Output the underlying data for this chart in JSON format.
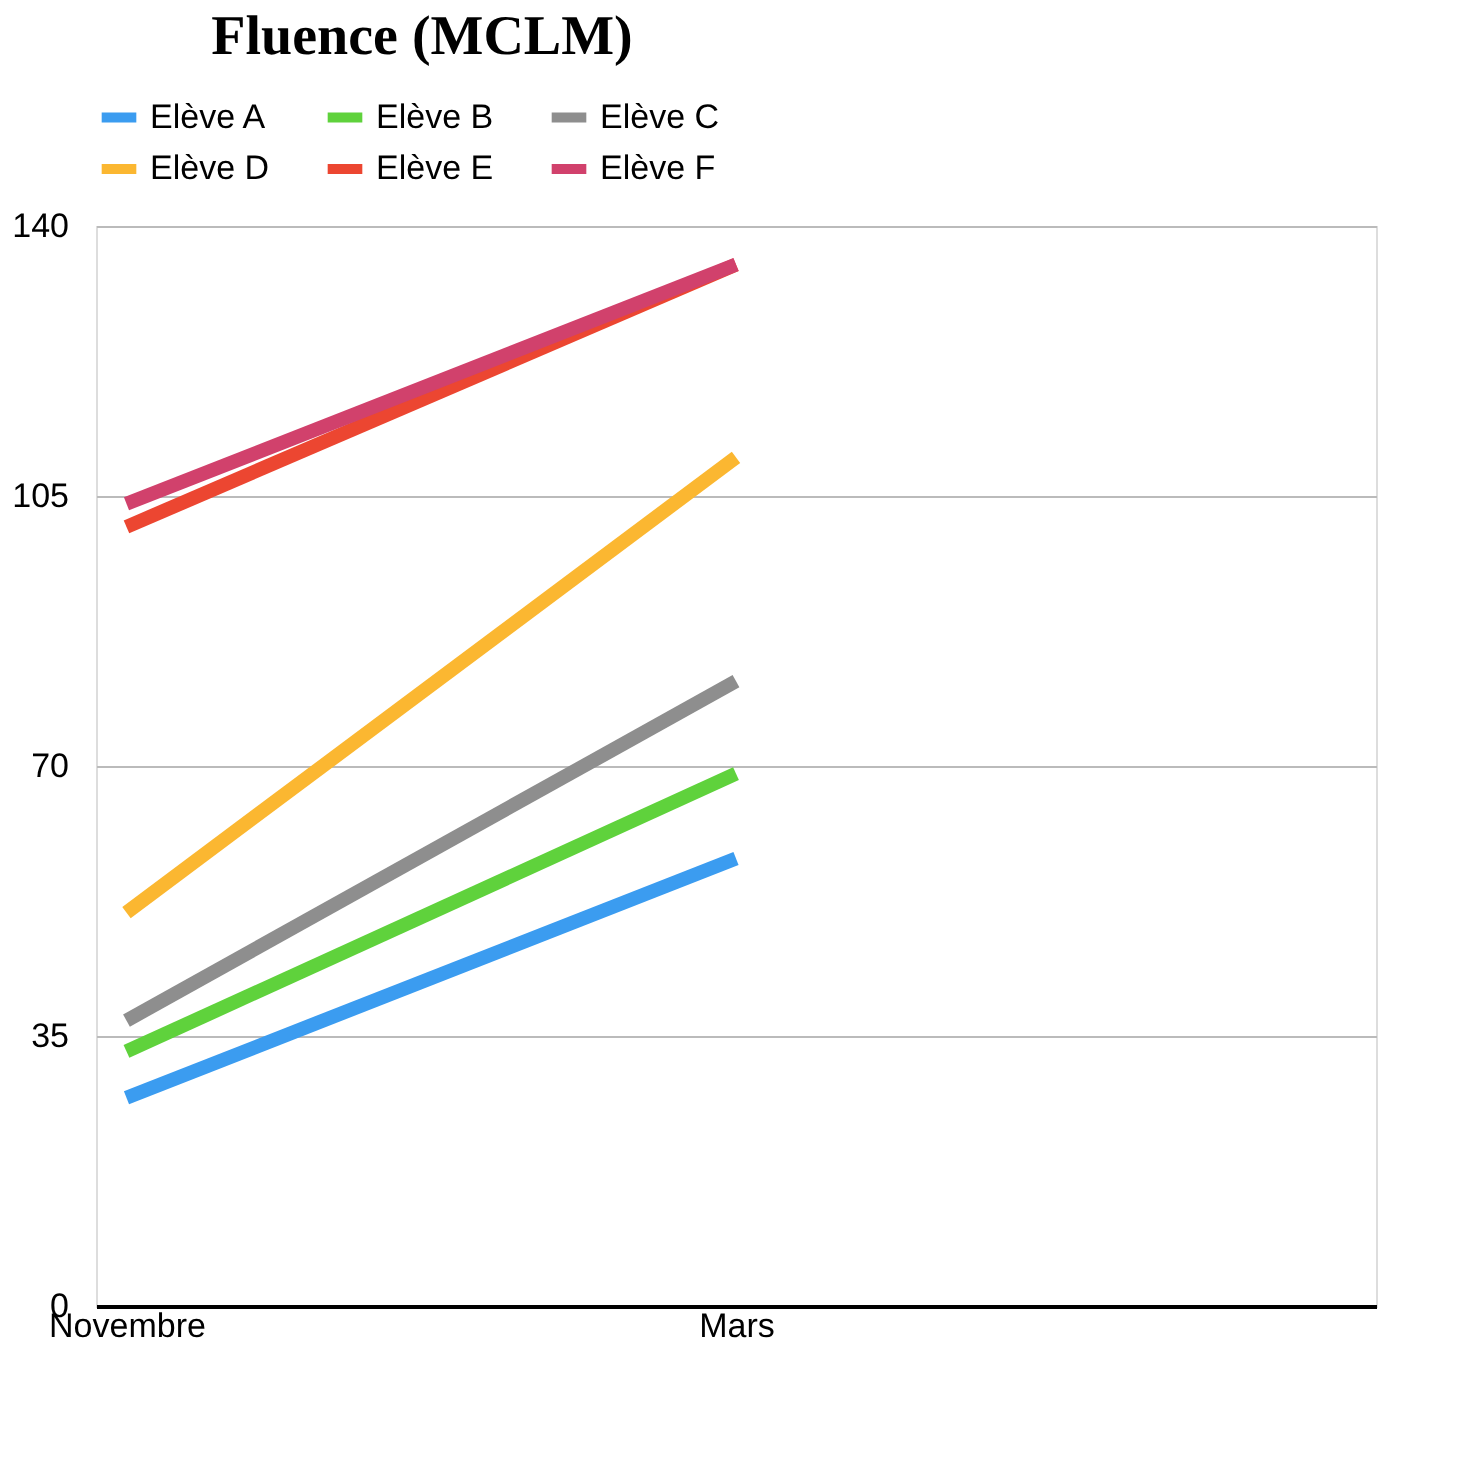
{
  "chart_data": {
    "type": "line",
    "title": "Fluence (MCLM)",
    "categories": [
      "Novembre",
      "Mars",
      null
    ],
    "ylim": [
      0,
      140
    ],
    "yticks": [
      0,
      35,
      70,
      105,
      140
    ],
    "grid": "y",
    "legend": "top left",
    "marker": "none",
    "line_style": "solid",
    "series": [
      {
        "name": "Elève A",
        "color": "#3b9cf0",
        "values": [
          27,
          58,
          null
        ]
      },
      {
        "name": "Elève B",
        "color": "#5fd23c",
        "values": [
          33,
          69,
          null
        ]
      },
      {
        "name": "Elève C",
        "color": "#8e8e8e",
        "values": [
          37,
          81,
          null
        ]
      },
      {
        "name": "Elève D",
        "color": "#fbb731",
        "values": [
          51,
          110,
          null
        ]
      },
      {
        "name": "Elève E",
        "color": "#ec4631",
        "values": [
          101,
          135,
          null
        ]
      },
      {
        "name": "Elève F",
        "color": "#d1416c",
        "values": [
          104,
          135,
          null
        ]
      }
    ]
  }
}
